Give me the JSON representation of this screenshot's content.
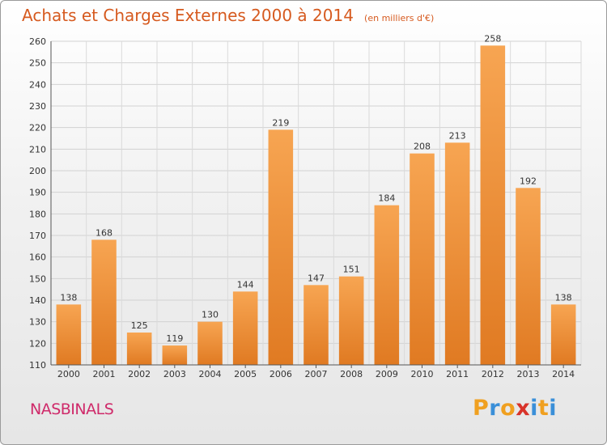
{
  "chart_data": {
    "type": "bar",
    "title": "Achats et Charges Externes 2000 à 2014",
    "subtitle": "(en milliers d'€)",
    "categories": [
      "2000",
      "2001",
      "2002",
      "2003",
      "2004",
      "2005",
      "2006",
      "2007",
      "2008",
      "2009",
      "2010",
      "2011",
      "2012",
      "2013",
      "2014"
    ],
    "values": [
      138,
      168,
      125,
      119,
      130,
      144,
      219,
      147,
      151,
      184,
      208,
      213,
      258,
      192,
      138
    ],
    "ylim": [
      110,
      260
    ],
    "yticks": [
      110,
      120,
      130,
      140,
      150,
      160,
      170,
      180,
      190,
      200,
      210,
      220,
      230,
      240,
      250,
      260
    ],
    "grid": true,
    "bar_color": "#f0923a",
    "bar_color_light": "#f7a552",
    "bar_color_dark": "#e07a22"
  },
  "location": "NASBINALS",
  "brand": {
    "letters": [
      "P",
      "r",
      "o",
      "x",
      "i",
      "t",
      "i"
    ],
    "colors": [
      "#f0a020",
      "#3a8fd8",
      "#f0a020",
      "#d8332a",
      "#3a8fd8",
      "#f0a020",
      "#3a8fd8"
    ]
  }
}
